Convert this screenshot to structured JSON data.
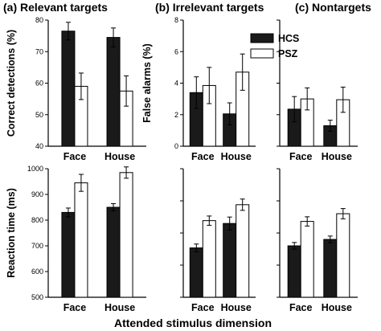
{
  "chart_data": [
    {
      "id": "top-a",
      "type": "bar",
      "panel_title": "(a) Relevant targets",
      "ylabel": "Correct detections (%)",
      "ylim": [
        40,
        80
      ],
      "yticks": [
        40,
        50,
        60,
        70,
        80
      ],
      "categories": [
        "Face",
        "House"
      ],
      "series": [
        {
          "name": "HCS",
          "values": [
            76.5,
            74.5
          ],
          "errors": [
            2.8,
            3.0
          ]
        },
        {
          "name": "PSZ",
          "values": [
            59.0,
            57.5
          ],
          "errors": [
            4.2,
            4.8
          ]
        }
      ]
    },
    {
      "id": "top-b",
      "type": "bar",
      "panel_title": "(b) Irrelevant targets",
      "ylabel": "False alarms (%)",
      "ylim": [
        0,
        8
      ],
      "yticks": [
        0,
        2,
        4,
        6,
        8
      ],
      "categories": [
        "Face",
        "House"
      ],
      "series": [
        {
          "name": "HCS",
          "values": [
            3.4,
            2.05
          ],
          "errors": [
            1.0,
            0.7
          ]
        },
        {
          "name": "PSZ",
          "values": [
            3.85,
            4.7
          ],
          "errors": [
            1.15,
            1.15
          ]
        }
      ]
    },
    {
      "id": "top-c",
      "type": "bar",
      "panel_title": "(c) Nontargets",
      "ylim": [
        0,
        8
      ],
      "categories": [
        "Face",
        "House"
      ],
      "series": [
        {
          "name": "HCS",
          "values": [
            2.35,
            1.3
          ],
          "errors": [
            0.8,
            0.35
          ]
        },
        {
          "name": "PSZ",
          "values": [
            3.0,
            2.95
          ],
          "errors": [
            0.7,
            0.8
          ]
        }
      ]
    },
    {
      "id": "bottom-a",
      "type": "bar",
      "ylabel": "Reaction time (ms)",
      "ylim": [
        500,
        1000
      ],
      "yticks": [
        500,
        600,
        700,
        800,
        900,
        1000
      ],
      "categories": [
        "Face",
        "House"
      ],
      "series": [
        {
          "name": "HCS",
          "values": [
            830,
            850
          ],
          "errors": [
            17,
            14
          ]
        },
        {
          "name": "PSZ",
          "values": [
            945,
            985
          ],
          "errors": [
            33,
            22
          ]
        }
      ]
    },
    {
      "id": "bottom-b",
      "type": "bar",
      "ylim": [
        500,
        1000
      ],
      "categories": [
        "Face",
        "House"
      ],
      "series": [
        {
          "name": "HCS",
          "values": [
            692,
            787
          ],
          "errors": [
            15,
            25
          ]
        },
        {
          "name": "PSZ",
          "values": [
            798,
            860
          ],
          "errors": [
            18,
            22
          ]
        }
      ]
    },
    {
      "id": "bottom-c",
      "type": "bar",
      "ylim": [
        500,
        1000
      ],
      "categories": [
        "Face",
        "House"
      ],
      "series": [
        {
          "name": "HCS",
          "values": [
            700,
            725
          ],
          "errors": [
            13,
            13
          ]
        },
        {
          "name": "PSZ",
          "values": [
            795,
            825
          ],
          "errors": [
            18,
            20
          ]
        }
      ]
    }
  ],
  "legend": [
    {
      "name": "HCS",
      "color": "#1a1a1a"
    },
    {
      "name": "PSZ",
      "color": "#ffffff"
    }
  ],
  "xlabel": "Attended stimulus dimension",
  "colors": {
    "hcs": "#1a1a1a",
    "psz": "#ffffff",
    "axis": "#000000"
  }
}
